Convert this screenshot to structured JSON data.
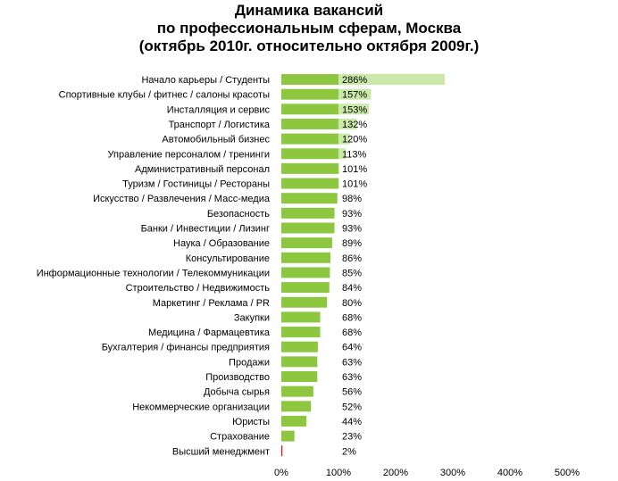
{
  "colors": {
    "base_bar": "#8dc63f",
    "extra_bar": "#c8e9a7",
    "highlight_bar": "#ee1111",
    "highlight_text": "#ee1111"
  },
  "chart_data": {
    "type": "bar",
    "orientation": "horizontal",
    "title_lines": [
      "Динамика вакансий",
      "по профессиональным сферам, Москва",
      "(октябрь 2010г. относительно октября 2009г.)"
    ],
    "xlim": [
      0,
      500
    ],
    "xticks": [
      "0%",
      "100%",
      "200%",
      "300%",
      "400%",
      "500%"
    ],
    "grid": false,
    "legend": "none",
    "categories": [
      "Начало карьеры / Студенты",
      "Спортивные клубы / фитнес / салоны красоты",
      "Инсталляция  и сервис",
      "Транспорт / Логистика",
      "Автомобильный бизнес",
      "Управление персоналом / тренинги",
      "Административный персонал",
      "Туризм / Гостиницы / Рестораны",
      "Искусство / Развлечения / Масс-медиа",
      "Безопасность",
      "Банки / Инвестиции / Лизинг",
      "Наука / Образование",
      "Консультирование",
      "Информационные технологии / Телекоммуникации",
      "Строительство / Недвижимость",
      "Маркетинг / Реклама / PR",
      "Закупки",
      "Медицина / Фармацевтика",
      "Бухгалтерия  / финансы предприятия",
      "Продажи",
      "Производство",
      "Добыча сырья",
      "Некоммерческие организации",
      "Юристы",
      "Страхование",
      "Высший менеджмент"
    ],
    "values": [
      286,
      157,
      153,
      132,
      120,
      113,
      101,
      101,
      98,
      93,
      93,
      89,
      86,
      85,
      84,
      80,
      68,
      68,
      64,
      63,
      63,
      56,
      52,
      44,
      23,
      2
    ],
    "value_labels": [
      "286%",
      "157%",
      "153%",
      "132%",
      "120%",
      "113%",
      "101%",
      "101%",
      "98%",
      "93%",
      "93%",
      "89%",
      "86%",
      "85%",
      "84%",
      "80%",
      "68%",
      "68%",
      "64%",
      "63%",
      "63%",
      "56%",
      "52%",
      "44%",
      "23%",
      "2%"
    ],
    "highlighted_category": "Высший менеджмент"
  }
}
